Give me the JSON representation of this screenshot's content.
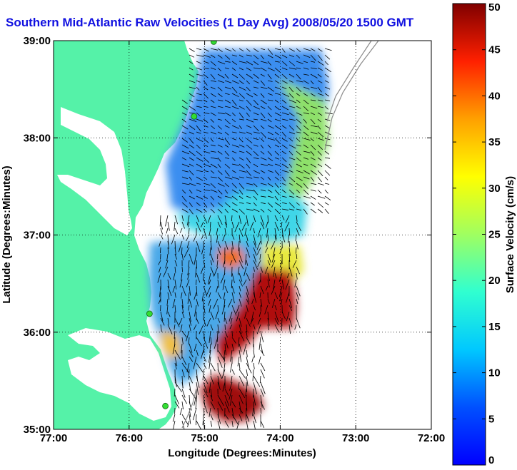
{
  "title": "Southern Mid-Atlantic Raw Velocities (1 Day Avg) 2008/05/20 1500 GMT",
  "map": {
    "xlabel": "Longitude (Degrees:Minutes)",
    "ylabel": "Latitude (Degrees:Minutes)",
    "x_ticks": [
      "77:00",
      "76:00",
      "75:00",
      "74:00",
      "73:00",
      "72:00"
    ],
    "y_ticks": [
      "39:00",
      "38:00",
      "37:00",
      "36:00",
      "35:00"
    ],
    "lon_range": [
      -77,
      -72
    ],
    "lat_range": [
      35,
      39
    ],
    "grid": true,
    "land_color": "#55f2a8",
    "water_color": "#ffffff",
    "station_color": "#33dd33",
    "stations": [
      {
        "lon": -74.88,
        "lat": 38.99
      },
      {
        "lon": -75.14,
        "lat": 38.22
      },
      {
        "lon": -75.73,
        "lat": 36.19
      },
      {
        "lon": -75.52,
        "lat": 35.24
      }
    ]
  },
  "colorbar": {
    "label": "Surface Velocity (cm/s)",
    "ticks": [
      "50",
      "45",
      "40",
      "35",
      "30",
      "25",
      "20",
      "15",
      "10",
      "5",
      "0"
    ],
    "range": [
      0,
      50
    ],
    "colormap": "jet"
  }
}
